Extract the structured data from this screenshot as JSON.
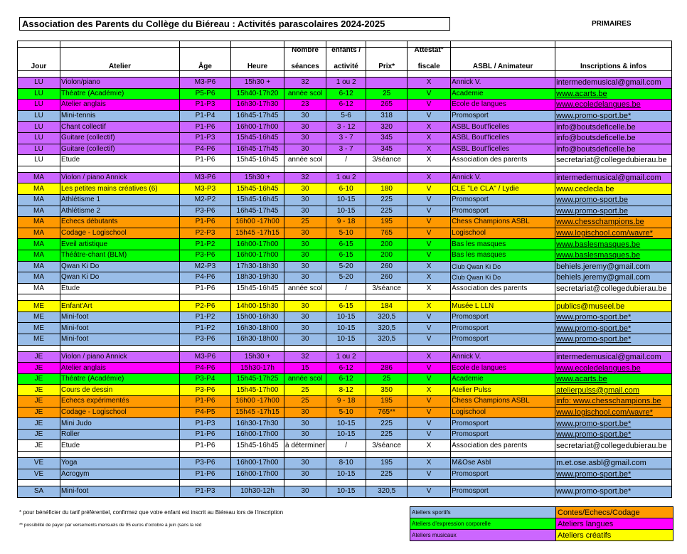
{
  "title": "Association des Parents du Collège du Biéreau : Activités parascolaires 2024-2025",
  "section": "PRIMAIRES",
  "colors": {
    "sport": "#99BDE8",
    "contes": "#FF9900",
    "corporelle": "#00FF00",
    "langues": "#FF00FF",
    "musicaux": "#CC66FF",
    "creatifs": "#FFFF00",
    "white": "#FFFFFF"
  },
  "headers": {
    "top": [
      "",
      "",
      "",
      "",
      "Nombre",
      "enfants /",
      "",
      "Attestat°",
      "",
      ""
    ],
    "bottom": [
      "Jour",
      "Atelier",
      "Âge",
      "Heure",
      "séances",
      "activité",
      "Prix*",
      "fiscale",
      "ASBL / Animateur",
      "Inscriptions & infos"
    ]
  },
  "groups": [
    [
      {
        "jour": "LU",
        "atelier": "Violon/piano",
        "age": "M3-P6",
        "heure": "15h30 +",
        "nb": "32",
        "enfants": "1 ou 2",
        "prix": "",
        "attest": "X",
        "asbl": "Annick V.",
        "infos": "intermedemusical@gmail.com",
        "color": "musicaux"
      },
      {
        "jour": "LU",
        "atelier": "Théatre (Académie)",
        "age": "P5-P6",
        "heure": "15h40-17h20",
        "nb": "année scol",
        "enfants": "6-12",
        "prix": "25",
        "attest": "V",
        "asbl": "Academie",
        "infos": "www.acarts.be",
        "color": "corporelle",
        "link": true
      },
      {
        "jour": "LU",
        "atelier": "Atelier anglais",
        "age": "P1-P3",
        "heure": "16h30-17h30",
        "nb": "23",
        "enfants": "6-12",
        "prix": "265",
        "attest": "V",
        "asbl": "Ecole de langues",
        "infos": "www.ecoledelangues.be",
        "color": "langues",
        "link": true
      },
      {
        "jour": "LU",
        "atelier": "Mini-tennis",
        "age": "P1-P4",
        "heure": "16h45-17h45",
        "nb": "30",
        "enfants": "5-6",
        "prix": "318",
        "attest": "V",
        "asbl": "Promosport",
        "infos": "www.promo-sport.be*",
        "color": "sport",
        "link": true
      },
      {
        "jour": "LU",
        "atelier": "Chant collectif",
        "age": "P1-P6",
        "heure": "16h00-17h00",
        "nb": "30",
        "enfants": "3 - 12",
        "prix": "320",
        "attest": "X",
        "asbl": "ASBL Bout'ficelles",
        "infos": "info@boutsdeficelle.be",
        "color": "musicaux"
      },
      {
        "jour": "LU",
        "atelier": "Guitare (collectif)",
        "age": "P1-P3",
        "heure": "15h45-16h45",
        "nb": "30",
        "enfants": "3 - 7",
        "prix": "345",
        "attest": "X",
        "asbl": "ASBL Bout'ficelles",
        "infos": "info@boutsdeficelle.be",
        "color": "musicaux"
      },
      {
        "jour": "LU",
        "atelier": "Guitare (collectif)",
        "age": "P4-P6",
        "heure": "16h45-17h45",
        "nb": "30",
        "enfants": "3 - 7",
        "prix": "345",
        "attest": "X",
        "asbl": "ASBL Bout'ficelles",
        "infos": "info@boutsdeficelle.be",
        "color": "musicaux"
      },
      {
        "jour": "LU",
        "atelier": "Etude",
        "age": "P1-P6",
        "heure": "15h45-16h45",
        "nb": "année scol",
        "enfants": "/",
        "prix": "3/séance",
        "attest": "X",
        "asbl": "Association des parents",
        "infos": "secretariat@collegedubierau.be",
        "color": "white"
      }
    ],
    [
      {
        "jour": "MA",
        "atelier": "Violon / piano Annick",
        "age": "M3-P6",
        "heure": "15h30 +",
        "nb": "32",
        "enfants": "1 ou 2",
        "prix": "",
        "attest": "X",
        "asbl": "Annick V.",
        "infos": "intermedemusical@gmail.com",
        "color": "musicaux"
      },
      {
        "jour": "MA",
        "atelier": "Les petites mains créatives (6)",
        "age": "M3-P3",
        "heure": "15h45-16h45",
        "nb": "30",
        "enfants": "6-10",
        "prix": "180",
        "attest": "V",
        "asbl": "CLE \"Le CLA\" / Lydie",
        "infos": "www.ceclecla.be",
        "color": "creatifs"
      },
      {
        "jour": "MA",
        "atelier": "Athlétisme 1",
        "age": "M2-P2",
        "heure": "15h45-16h45",
        "nb": "30",
        "enfants": "10-15",
        "prix": "225",
        "attest": "V",
        "asbl": "Promosport",
        "infos": "www.promo-sport.be",
        "color": "sport",
        "link": true
      },
      {
        "jour": "MA",
        "atelier": "Athlétisme 2",
        "age": "P3-P6",
        "heure": "16h45-17h45",
        "nb": "30",
        "enfants": "10-15",
        "prix": "225",
        "attest": "V",
        "asbl": "Promosport",
        "infos": "www.promo-sport.be",
        "color": "sport",
        "link": true
      },
      {
        "jour": "MA",
        "atelier": "Echecs débutants",
        "age": "P1-P6",
        "heure": "16h00 -17h00",
        "nb": "25",
        "enfants": "9 - 18",
        "prix": "195",
        "attest": "V",
        "asbl": "Chess Champions ASBL",
        "infos": "www.chesschampions.be",
        "color": "contes",
        "link": true
      },
      {
        "jour": "MA",
        "atelier": "Codage - Logischool",
        "age": "P2-P3",
        "heure": "15h45 -17h15",
        "nb": "30",
        "enfants": "5-10",
        "prix": "765",
        "attest": "V",
        "asbl": "Logischool",
        "infos": "www.logischool.com/wavre*",
        "color": "contes",
        "link": true
      },
      {
        "jour": "MA",
        "atelier": "Eveil artistique",
        "age": "P1-P2",
        "heure": "16h00-17h00",
        "nb": "30",
        "enfants": "6-15",
        "prix": "200",
        "attest": "V",
        "asbl": "Bas les masques",
        "infos": "www.baslesmasques.be",
        "color": "corporelle",
        "link": true
      },
      {
        "jour": "MA",
        "atelier": "Théâtre-chant (BLM)",
        "age": "P3-P6",
        "heure": "16h00-17h00",
        "nb": "30",
        "enfants": "6-15",
        "prix": "200",
        "attest": "V",
        "asbl": "Bas les masques",
        "infos": "www.baslesmasques.be",
        "color": "corporelle",
        "link": true
      },
      {
        "jour": "MA",
        "atelier": "Qwan Ki Do",
        "age": "M2-P3",
        "heure": "17h30-18h30",
        "nb": "30",
        "enfants": "5-20",
        "prix": "260",
        "attest": "X",
        "asbl": "Club Qwan Ki Do",
        "infos": "behiels.jeremy@gmail.com",
        "color": "sport",
        "small": true
      },
      {
        "jour": "MA",
        "atelier": "Qwan Ki Do",
        "age": "P4-P6",
        "heure": "18h30-19h30",
        "nb": "30",
        "enfants": "5-20",
        "prix": "260",
        "attest": "X",
        "asbl": "Club Qwan Ki Do",
        "infos": "behiels.jeremy@gmail.com",
        "color": "sport",
        "small": true
      },
      {
        "jour": "MA",
        "atelier": "Etude",
        "age": "P1-P6",
        "heure": "15h45-16h45",
        "nb": "année scol",
        "enfants": "/",
        "prix": "3/séance",
        "attest": "X",
        "asbl": "Association des parents",
        "infos": "secretariat@collegedubierau.be",
        "color": "white"
      }
    ],
    [
      {
        "jour": "ME",
        "atelier": "Enfant'Art",
        "age": "P2-P6",
        "heure": "14h00-15h30",
        "nb": "30",
        "enfants": "6-15",
        "prix": "184",
        "attest": "X",
        "asbl": "Musée L LLN",
        "infos": "publics@museel.be",
        "color": "creatifs"
      },
      {
        "jour": "ME",
        "atelier": "Mini-foot",
        "age": "P1-P2",
        "heure": "15h00-16h30",
        "nb": "30",
        "enfants": "10-15",
        "prix": "320,5",
        "attest": "V",
        "asbl": "Promosport",
        "infos": "www.promo-sport.be*",
        "color": "sport",
        "link": true
      },
      {
        "jour": "ME",
        "atelier": "Mini-foot",
        "age": "P1-P2",
        "heure": "16h30-18h00",
        "nb": "30",
        "enfants": "10-15",
        "prix": "320,5",
        "attest": "V",
        "asbl": "Promosport",
        "infos": "www.promo-sport.be*",
        "color": "sport",
        "link": true
      },
      {
        "jour": "ME",
        "atelier": "Mini-foot",
        "age": "P3-P6",
        "heure": "16h30-18h00",
        "nb": "30",
        "enfants": "10-15",
        "prix": "320,5",
        "attest": "V",
        "asbl": "Promosport",
        "infos": "www.promo-sport.be*",
        "color": "sport",
        "link": true
      }
    ],
    [
      {
        "jour": "JE",
        "atelier": "Violon / piano Annick",
        "age": "M3-P6",
        "heure": "15h30 +",
        "nb": "32",
        "enfants": "1 ou 2",
        "prix": "",
        "attest": "X",
        "asbl": "Annick V.",
        "infos": "intermedemusical@gmail.com",
        "color": "musicaux"
      },
      {
        "jour": "JE",
        "atelier": "Atelier anglais",
        "age": "P4-P6",
        "heure": "15h30-17h",
        "nb": "15",
        "enfants": "6-12",
        "prix": "286",
        "attest": "V",
        "asbl": "Ecole de langues",
        "infos": "www.ecoledelangues.be",
        "color": "langues",
        "link": true
      },
      {
        "jour": "JE",
        "atelier": "Théatre (Académie)",
        "age": "P3-P4",
        "heure": "15h45-17h25",
        "nb": "année scol",
        "enfants": "6-12",
        "prix": "25",
        "attest": "V",
        "asbl": "Academie",
        "infos": "www.acarts.be",
        "color": "corporelle",
        "link": true
      },
      {
        "jour": "JE",
        "atelier": "Cours de dessin",
        "age": "P3-P6",
        "heure": "15h45-17h00",
        "nb": "25",
        "enfants": "8-12",
        "prix": "350",
        "attest": "X",
        "asbl": "Atelier Pulss",
        "infos": "atelierpulss@gmail.com",
        "color": "creatifs",
        "link": true
      },
      {
        "jour": "JE",
        "atelier": "Echecs expérimentés",
        "age": "P1-P6",
        "heure": "16h00 -17h00",
        "nb": "25",
        "enfants": "9 - 18",
        "prix": "195",
        "attest": "V",
        "asbl": "Chess Champions ASBL",
        "infos": "info: www.chesschampions.be",
        "color": "contes",
        "link": true
      },
      {
        "jour": "JE",
        "atelier": "Codage - Logischool",
        "age": "P4-P5",
        "heure": "15h45 -17h15",
        "nb": "30",
        "enfants": "5-10",
        "prix": "765**",
        "attest": "V",
        "asbl": "Logischool",
        "infos": "www.logischool.com/wavre*",
        "color": "contes",
        "link": true
      },
      {
        "jour": "JE",
        "atelier": "Mini Judo",
        "age": "P1-P3",
        "heure": "16h30-17h30",
        "nb": "30",
        "enfants": "10-15",
        "prix": "225",
        "attest": "V",
        "asbl": "Promosport",
        "infos": "www.promo-sport.be*",
        "color": "sport",
        "link": true
      },
      {
        "jour": "JE",
        "atelier": "Roller",
        "age": "P1-P6",
        "heure": "16h00-17h00",
        "nb": "30",
        "enfants": "10-15",
        "prix": "225",
        "attest": "V",
        "asbl": "Promosport",
        "infos": "www.promo-sport.be*",
        "color": "sport",
        "link": true
      },
      {
        "jour": "JE",
        "atelier": "Etude",
        "age": "P1-P6",
        "heure": "15h45-16h45",
        "nb": "à déterminer",
        "enfants": "/",
        "prix": "3/séance",
        "attest": "X",
        "asbl": "Association des parents",
        "infos": "secretariat@collegedubierau.be",
        "color": "white"
      }
    ],
    [
      {
        "jour": "VE",
        "atelier": "Yoga",
        "age": "P3-P6",
        "heure": "16h00-17h00",
        "nb": "30",
        "enfants": "8-10",
        "prix": "195",
        "attest": "X",
        "asbl": "M&Ose Asbl",
        "infos": "m.et.ose.asbl@gmail.com",
        "color": "sport"
      },
      {
        "jour": "VE",
        "atelier": "Acrogym",
        "age": "P1-P6",
        "heure": "16h00-17h00",
        "nb": "30",
        "enfants": "10-15",
        "prix": "225",
        "attest": "V",
        "asbl": "Promosport",
        "infos": "www.promo-sport.be*",
        "color": "sport",
        "link": true
      }
    ],
    [
      {
        "jour": "SA",
        "atelier": "Mini-foot",
        "age": "P1-P3",
        "heure": "10h30-12h",
        "nb": "30",
        "enfants": "10-15",
        "prix": "320,5",
        "attest": "V",
        "asbl": "Promosport",
        "infos": "www.promo-sport.be*",
        "color": "sport"
      }
    ]
  ],
  "footnotes": [
    "* pour bénéficier du tarif préférentiel, confirmez que votre enfant est inscrit au Biéreau lors de l'inscription",
    "** possibilité de payer par versements mensuels de 95 euros d'octobre à juin (sans la réd"
  ],
  "legend": [
    {
      "left": "Ateliers sportifs",
      "left_color": "sport",
      "right": "Contes/Echecs/Codage",
      "right_color": "contes"
    },
    {
      "left": "Ateliers d'expression corporelle",
      "left_color": "corporelle",
      "right": "Ateliers langues",
      "right_color": "langues"
    },
    {
      "left": "Ateliers musicaux",
      "left_color": "musicaux",
      "right": "Ateliers créatifs",
      "right_color": "creatifs"
    }
  ]
}
